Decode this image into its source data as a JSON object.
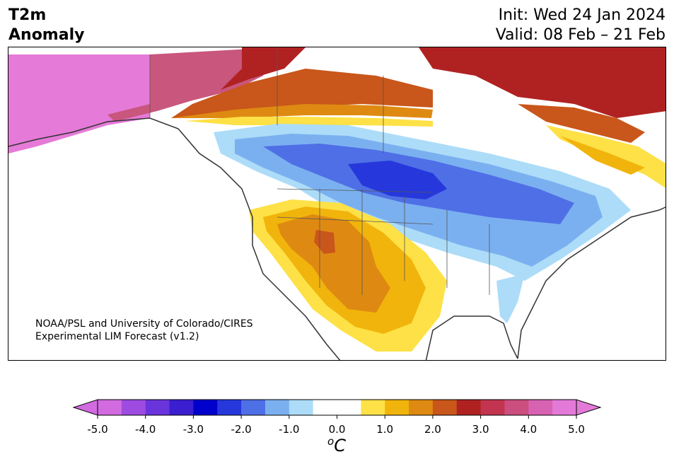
{
  "header": {
    "title_line1": "T2m",
    "title_line2": "Anomaly",
    "init_text": "Init: Wed 24 Jan 2024",
    "valid_text": "Valid: 08 Feb – 21 Feb"
  },
  "map": {
    "credit_line1": "NOAA/PSL and University of Colorado/CIRES",
    "credit_line2": "Experimental LIM Forecast (v1.2)"
  },
  "colorbar": {
    "unit_base": "C",
    "unit_prefix": "o",
    "extend": "both",
    "tick_labels": [
      "-5.0",
      "-4.0",
      "-3.0",
      "-2.0",
      "-1.0",
      "0.0",
      "1.0",
      "2.0",
      "3.0",
      "4.0",
      "5.0"
    ],
    "colors": [
      "#d26be0",
      "#9d4be0",
      "#6a34dc",
      "#3a1ed0",
      "#0000cc",
      "#2638dc",
      "#4f6fe6",
      "#7bb0f0",
      "#acdcf8",
      "#ffffff",
      "#ffffff",
      "#fde146",
      "#f1b40c",
      "#de8a12",
      "#c9561a",
      "#b02222",
      "#c23450",
      "#cc4e7e",
      "#d862b2",
      "#e47ad8"
    ],
    "min_color": "#d26be0",
    "max_color": "#e47ad8"
  }
}
